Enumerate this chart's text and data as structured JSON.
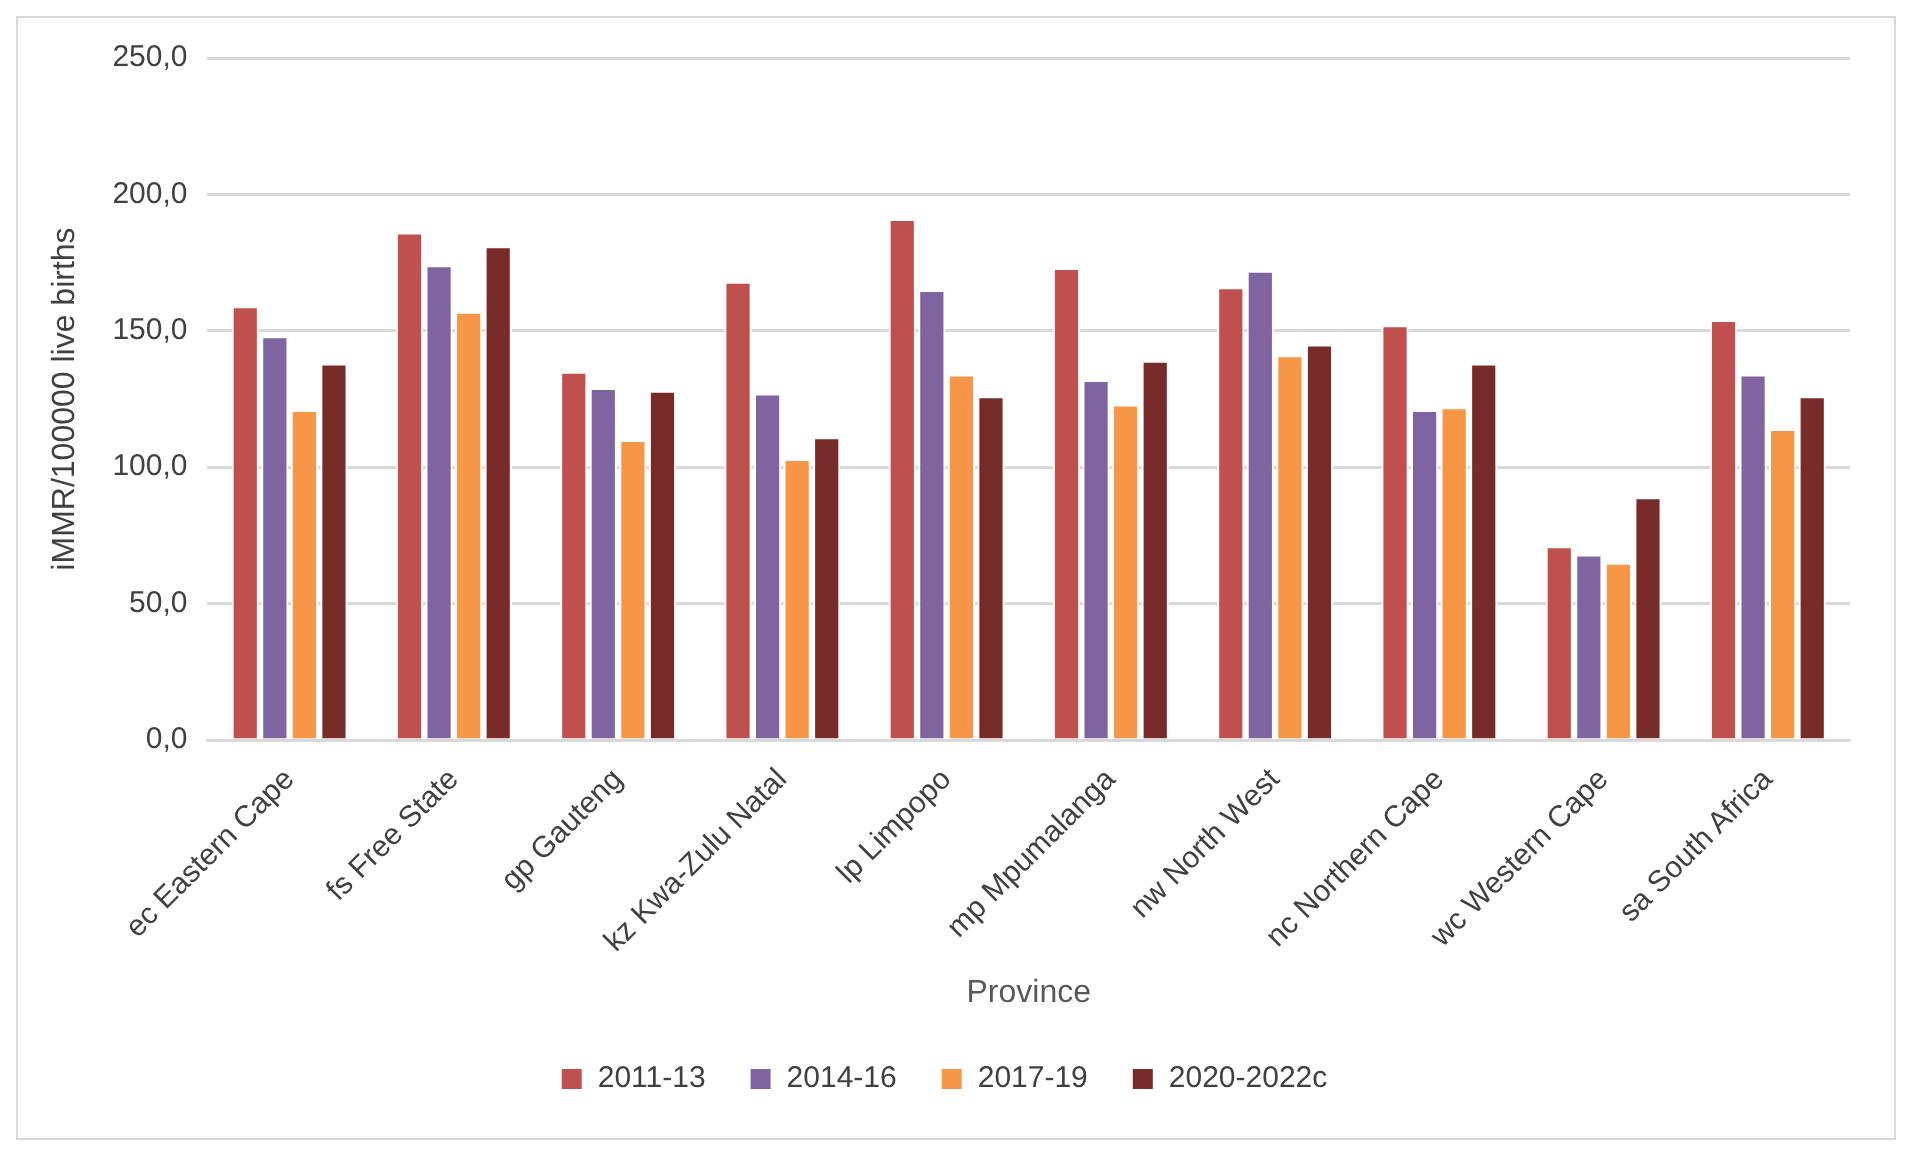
{
  "chart_data": {
    "type": "bar",
    "xlabel": "Province",
    "ylabel": "iMMR/100000 live births",
    "categories": [
      "ec Eastern Cape",
      "fs Free State",
      "gp Gauteng",
      "kz Kwa-Zulu Natal",
      "lp Limpopo",
      "mp Mpumalanga",
      "nw North West",
      "nc Northern Cape",
      "wc Western Cape",
      "sa South Africa"
    ],
    "series": [
      {
        "name": "2011-13",
        "color": "#c0504d",
        "values": [
          159,
          186,
          135,
          168,
          191,
          173,
          166,
          152,
          71,
          154
        ]
      },
      {
        "name": "2014-16",
        "color": "#8064a2",
        "values": [
          148,
          174,
          129,
          127,
          165,
          132,
          172,
          121,
          68,
          134
        ]
      },
      {
        "name": "2017-19",
        "color": "#f79646",
        "values": [
          121,
          157,
          110,
          103,
          134,
          123,
          141,
          122,
          65,
          114
        ]
      },
      {
        "name": "2020-2022c",
        "color": "#772c2a",
        "values": [
          138,
          181,
          128,
          111,
          126,
          139,
          145,
          138,
          89,
          126
        ]
      }
    ],
    "ylim": [
      0,
      250
    ],
    "yticks": [
      {
        "value": 0,
        "label": "0,0"
      },
      {
        "value": 50,
        "label": "50,0"
      },
      {
        "value": 100,
        "label": "100,0"
      },
      {
        "value": 150,
        "label": "150,0"
      },
      {
        "value": 200,
        "label": "200,0"
      },
      {
        "value": 250,
        "label": "250,0"
      }
    ],
    "grid": "y",
    "legend": "bottom"
  }
}
